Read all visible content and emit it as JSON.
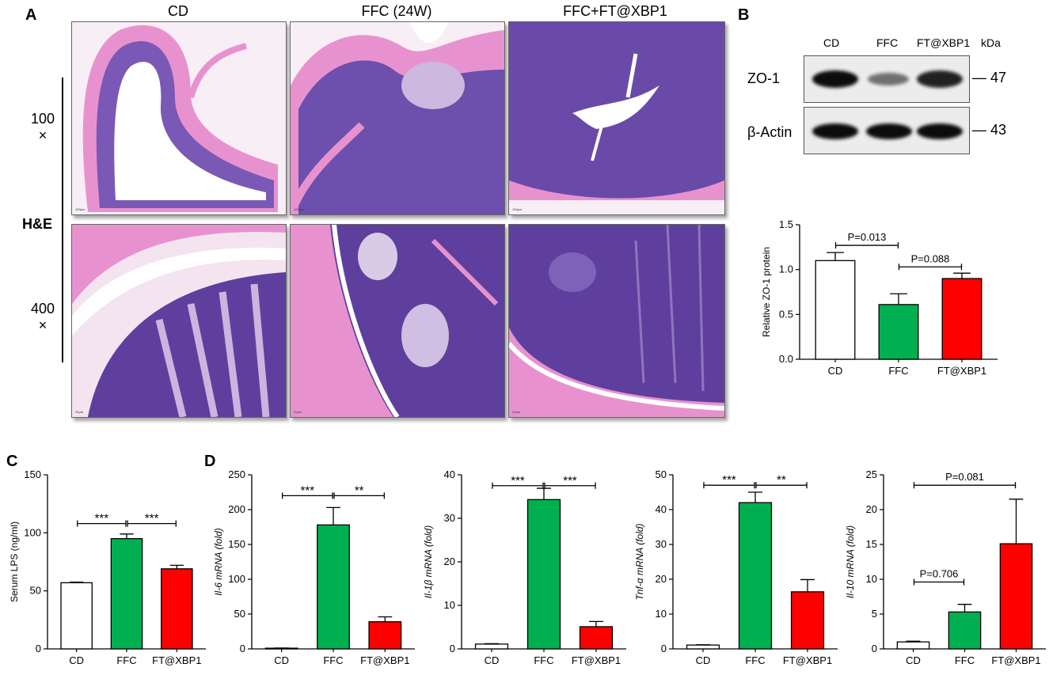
{
  "panels": {
    "A": "A",
    "B": "B",
    "C": "C",
    "D": "D"
  },
  "histology": {
    "columns": [
      "CD",
      "FFC (24W)",
      "FFC+FT@XBP1"
    ],
    "mag_100": "100",
    "mag_400": "400",
    "times": "×",
    "stain": "H&E",
    "scalebar_100": "100μm",
    "scalebar_400": "20μm"
  },
  "western": {
    "lanes": [
      "CD",
      "FFC",
      "FT@XBP1"
    ],
    "unit": "kDa",
    "rows": [
      {
        "label": "ZO-1",
        "kda": "— 47",
        "intensity": [
          1.0,
          0.55,
          0.9
        ]
      },
      {
        "label": "β-Actin",
        "kda": "— 43",
        "intensity": [
          1.0,
          1.0,
          1.0
        ]
      }
    ]
  },
  "colors": {
    "CD": "#ffffff",
    "FFC": "#00b050",
    "FT@XBP1": "#ff0000"
  },
  "chart_data": [
    {
      "id": "zo1",
      "type": "bar",
      "categories": [
        "CD",
        "FFC",
        "FT@XBP1"
      ],
      "values": [
        1.1,
        0.61,
        0.9
      ],
      "errors": [
        0.09,
        0.12,
        0.06
      ],
      "ylabel": "Relative ZO-1 protein",
      "ylim": [
        0,
        1.5
      ],
      "yticks": [
        "0.0",
        "0.5",
        "1.0",
        "1.5"
      ],
      "comparisons": [
        {
          "from": 0,
          "to": 1,
          "label": "P=0.013",
          "y": 1.27
        },
        {
          "from": 1,
          "to": 2,
          "label": "P=0.088",
          "y": 1.03
        }
      ]
    },
    {
      "id": "lps",
      "type": "bar",
      "categories": [
        "CD",
        "FFC",
        "FT@XBP1"
      ],
      "values": [
        57,
        95,
        69
      ],
      "errors": [
        0.5,
        4,
        3
      ],
      "ylabel": "Serum LPS (ng/ml)",
      "ylim": [
        0,
        150
      ],
      "yticks": [
        "0",
        "50",
        "100",
        "150"
      ],
      "comparisons": [
        {
          "from": 0,
          "to": 1,
          "label": "***",
          "y": 108
        },
        {
          "from": 1,
          "to": 2,
          "label": "***",
          "y": 108
        }
      ]
    },
    {
      "id": "il6",
      "type": "bar",
      "categories": [
        "CD",
        "FFC",
        "FT@XBP1"
      ],
      "values": [
        1,
        178,
        39
      ],
      "errors": [
        0.3,
        25,
        7
      ],
      "ylabel": "Il-6 mRNA (fold)",
      "ylim": [
        0,
        250
      ],
      "yticks": [
        "0",
        "50",
        "100",
        "150",
        "200",
        "250"
      ],
      "comparisons": [
        {
          "from": 0,
          "to": 1,
          "label": "***",
          "y": 220
        },
        {
          "from": 1,
          "to": 2,
          "label": "**",
          "y": 220
        }
      ]
    },
    {
      "id": "il1b",
      "type": "bar",
      "categories": [
        "CD",
        "FFC",
        "FT@XBP1"
      ],
      "values": [
        1.1,
        34.3,
        5.1
      ],
      "errors": [
        0.1,
        2.6,
        1.2
      ],
      "ylabel": "Il-1β mRNA (fold)",
      "ylim": [
        0,
        40
      ],
      "yticks": [
        "0",
        "10",
        "20",
        "30",
        "40"
      ],
      "comparisons": [
        {
          "from": 0,
          "to": 1,
          "label": "***",
          "y": 37.5
        },
        {
          "from": 1,
          "to": 2,
          "label": "***",
          "y": 37.5
        }
      ]
    },
    {
      "id": "tnfa",
      "type": "bar",
      "categories": [
        "CD",
        "FFC",
        "FT@XBP1"
      ],
      "values": [
        1.1,
        42,
        16.4
      ],
      "errors": [
        0.1,
        3,
        3.5
      ],
      "ylabel": "Tnf-α mRNA (fold)",
      "ylim": [
        0,
        50
      ],
      "yticks": [
        "0",
        "10",
        "20",
        "30",
        "40",
        "50"
      ],
      "comparisons": [
        {
          "from": 0,
          "to": 1,
          "label": "***",
          "y": 47
        },
        {
          "from": 1,
          "to": 2,
          "label": "**",
          "y": 47
        }
      ]
    },
    {
      "id": "il10",
      "type": "bar",
      "categories": [
        "CD",
        "FFC",
        "FT@XBP1"
      ],
      "values": [
        1.0,
        5.3,
        15.1
      ],
      "errors": [
        0.1,
        1.1,
        6.4
      ],
      "ylabel": "Il-10 mRNA (fold)",
      "ylim": [
        0,
        25
      ],
      "yticks": [
        "0",
        "5",
        "10",
        "15",
        "20",
        "25"
      ],
      "comparisons": [
        {
          "from": 0,
          "to": 1,
          "label": "P=0.706",
          "y": 9.6
        },
        {
          "from": 0,
          "to": 2,
          "label": "P=0.081",
          "y": 23.5
        }
      ]
    }
  ]
}
